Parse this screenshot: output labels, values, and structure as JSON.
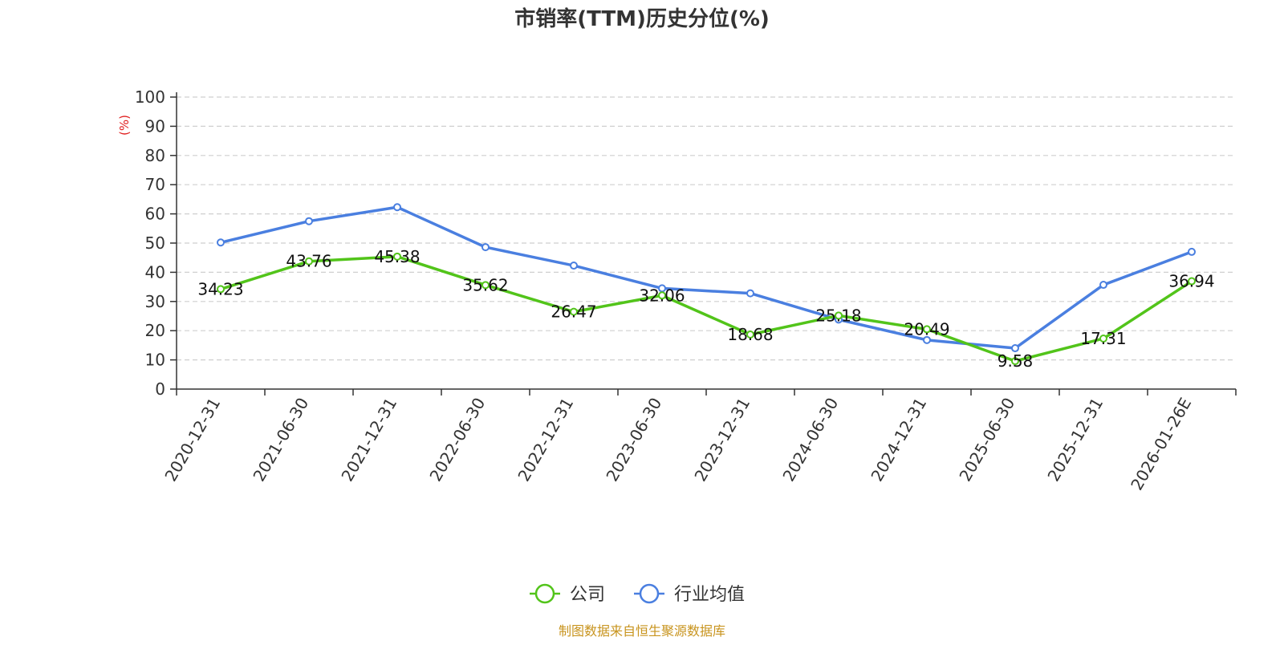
{
  "chart_data": {
    "type": "line",
    "title": "市销率(TTM)历史分位(%)",
    "ylabel": "(%)",
    "xlabel": "",
    "categories": [
      "2020-12-31",
      "2021-06-30",
      "2021-12-31",
      "2022-06-30",
      "2022-12-31",
      "2023-06-30",
      "2023-12-31",
      "2024-06-30",
      "2024-12-31",
      "2025-06-30",
      "2025-12-31",
      "2026-01-26E"
    ],
    "ylim": [
      0,
      100
    ],
    "yticks": [
      0,
      10,
      20,
      30,
      40,
      50,
      60,
      70,
      80,
      90,
      100
    ],
    "grid": true,
    "legend_position": "bottom",
    "series": [
      {
        "name": "公司",
        "color": "#52c41a",
        "values": [
          34.23,
          43.76,
          45.38,
          35.62,
          26.47,
          32.06,
          18.68,
          25.18,
          20.49,
          9.58,
          17.31,
          36.94
        ],
        "data_labels": [
          "34.23",
          "43.76",
          "45.38",
          "35.62",
          "26.47",
          "32.06",
          "18.68",
          "25.18",
          "20.49",
          "9.58",
          "17.31",
          "36.94"
        ]
      },
      {
        "name": "行业均值",
        "color": "#4a7fe0",
        "values": [
          50.2,
          57.5,
          62.3,
          48.6,
          42.3,
          34.5,
          32.8,
          23.8,
          16.8,
          14.0,
          35.7,
          47.0
        ]
      }
    ],
    "source": "制图数据来自恒生聚源数据库",
    "source_color": "#c8941e",
    "ylabel_color": "#e02020"
  }
}
